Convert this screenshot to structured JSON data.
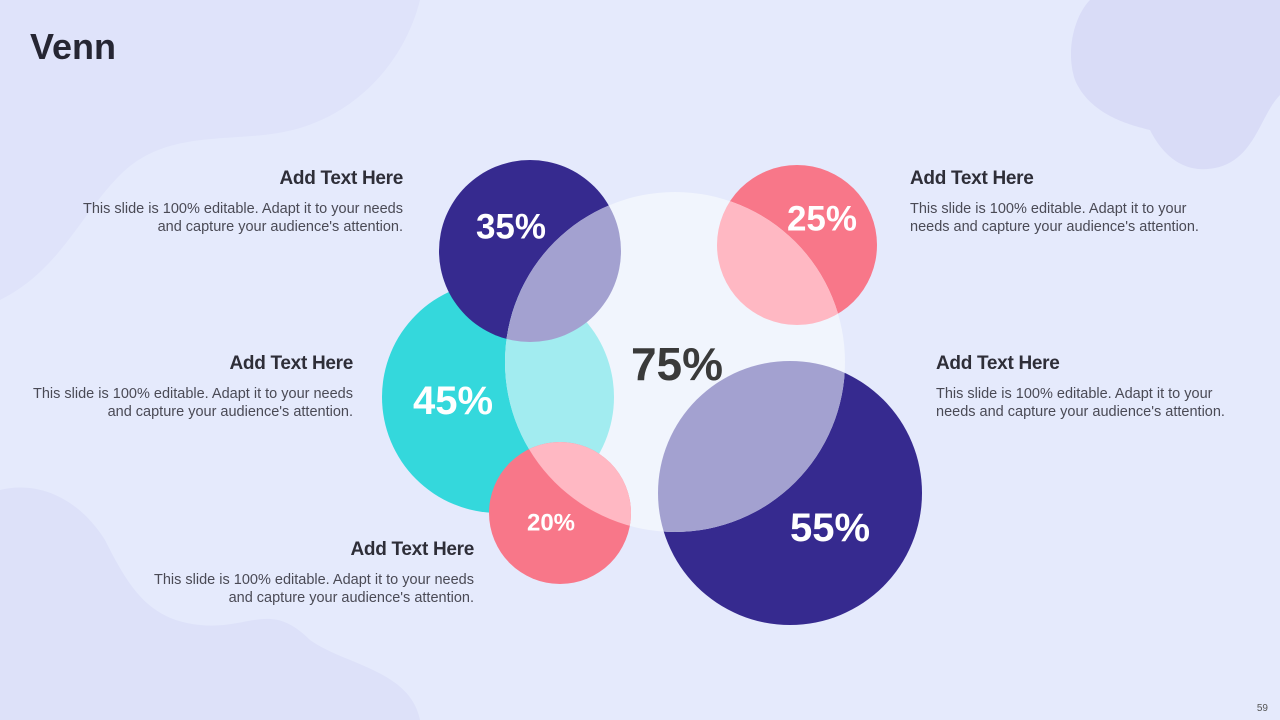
{
  "slide": {
    "title": "Venn",
    "page_number": "59"
  },
  "colors": {
    "background": "#e5eafc",
    "navy": "#362a8f",
    "teal": "#34d8dc",
    "pink": "#f87789",
    "center_circle": "#f1f5fd",
    "navy_overlap": "#a3a1d0",
    "teal_overlap": "#a2ecf0",
    "pink_overlap": "#ffb8c3"
  },
  "venn": {
    "center_label": "75%",
    "circles": {
      "top_left": "35%",
      "mid_left": "45%",
      "bottom_left": "20%",
      "top_right": "25%",
      "bottom_right": "55%"
    }
  },
  "text_blocks": [
    {
      "heading": "Add Text Here",
      "body": "This slide is 100% editable. Adapt it to your needs and capture your audience's attention."
    },
    {
      "heading": "Add Text Here",
      "body": "This slide is 100% editable. Adapt it to your needs and capture your audience's attention."
    },
    {
      "heading": "Add Text Here",
      "body": "This slide is 100% editable. Adapt it to your needs and capture your audience's attention."
    },
    {
      "heading": "Add Text Here",
      "body": "This slide is 100% editable. Adapt it to your needs and capture your audience's attention."
    },
    {
      "heading": "Add Text Here",
      "body": "This slide is 100% editable. Adapt it to your needs and capture your audience's attention."
    }
  ]
}
